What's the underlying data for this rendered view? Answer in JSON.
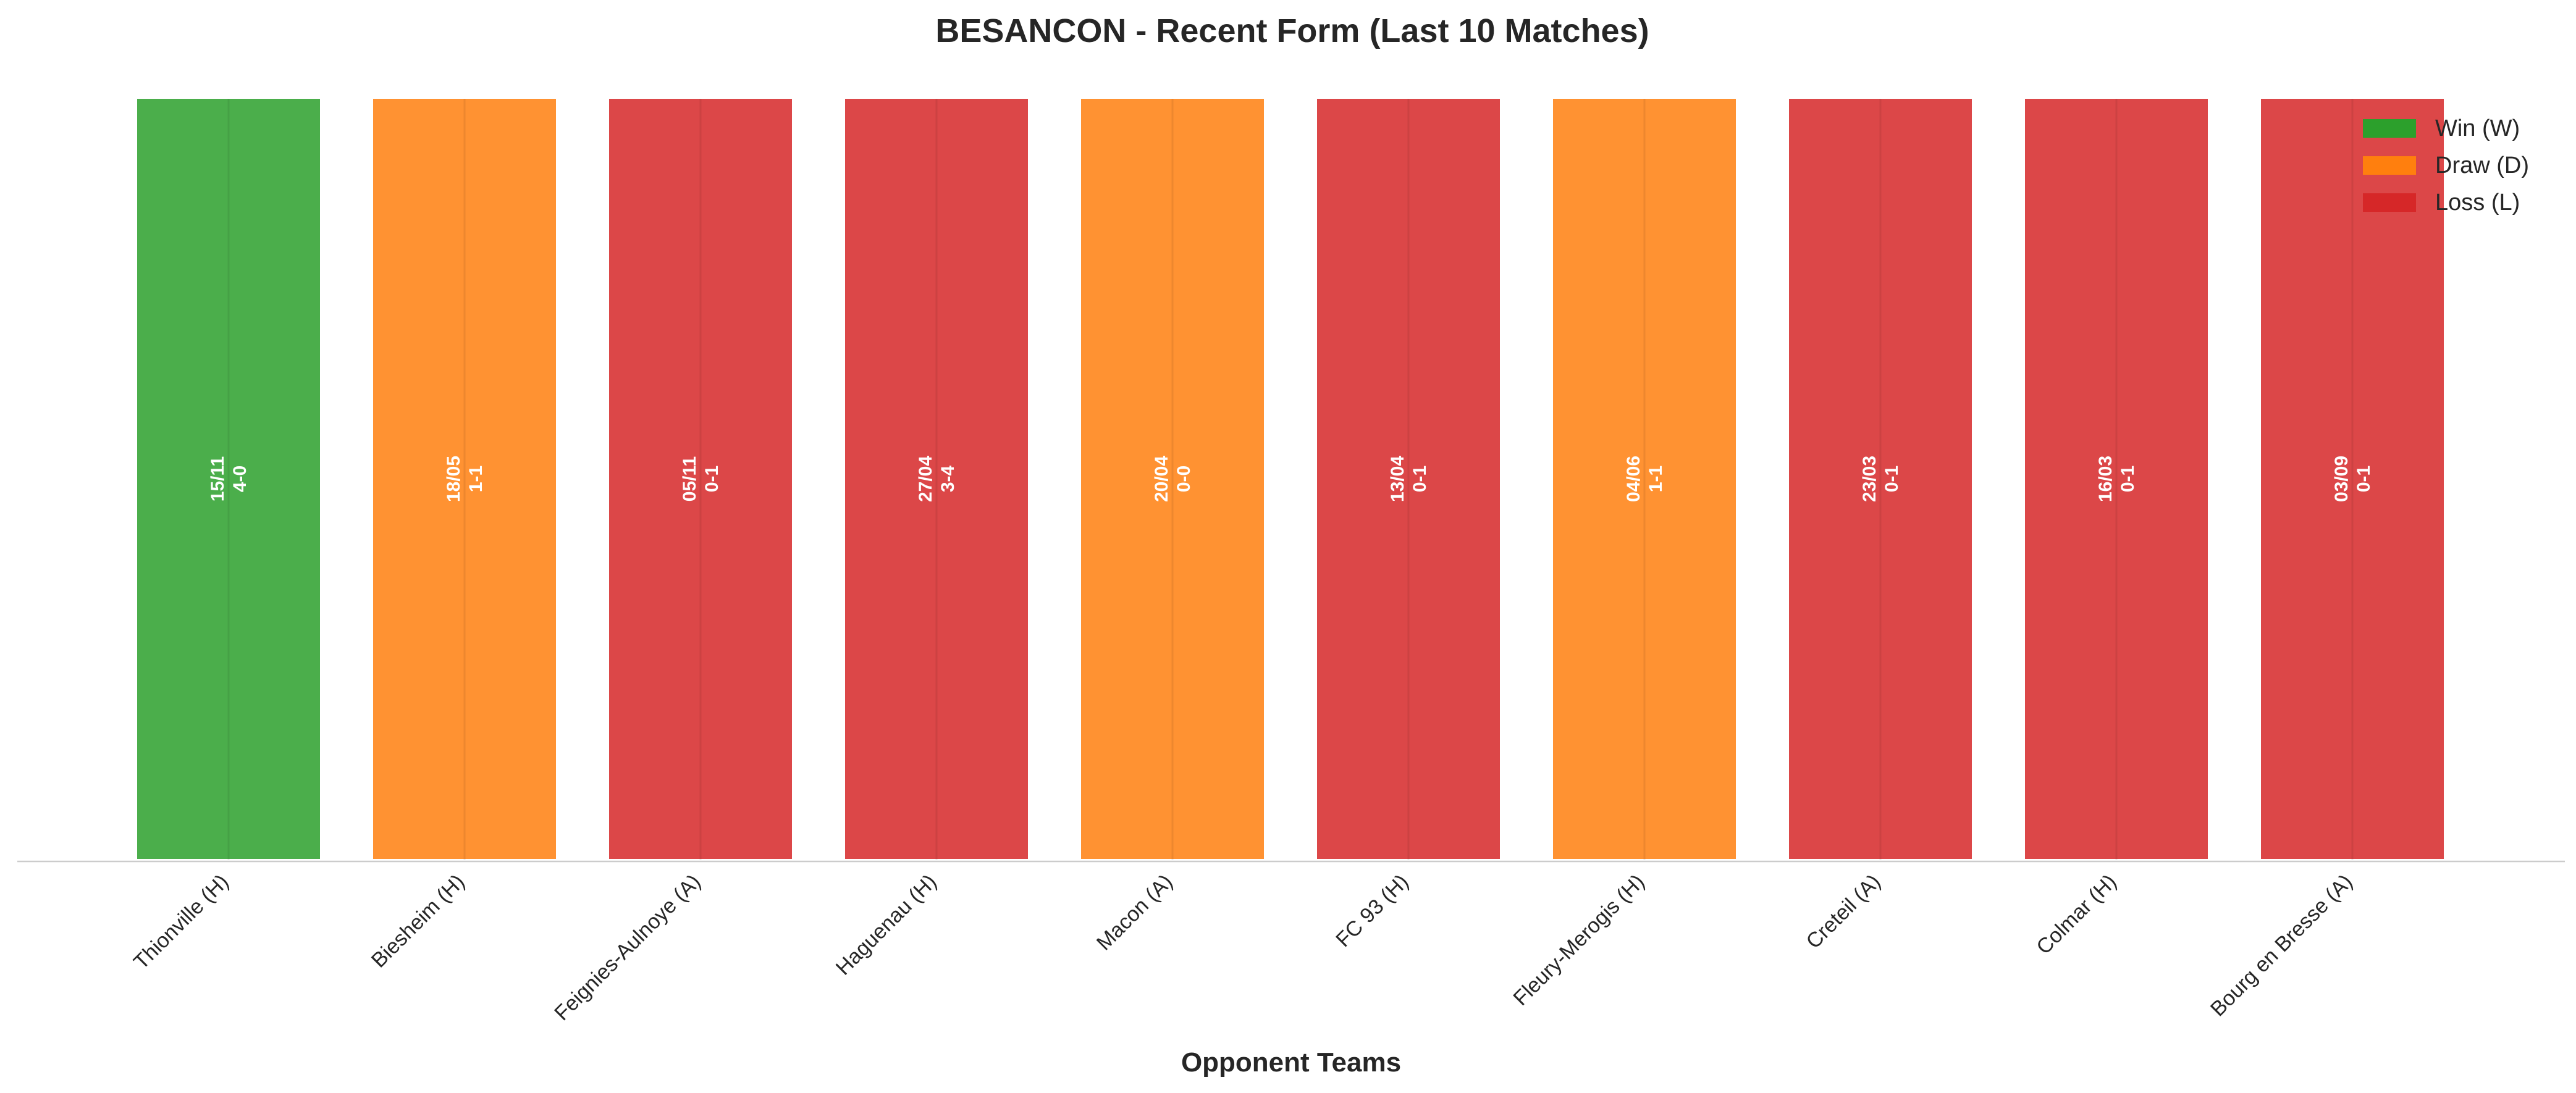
{
  "chart_data": {
    "type": "bar",
    "title": "BESANCON - Recent Form (Last 10 Matches)",
    "xlabel": "Opponent Teams",
    "ylabel": "",
    "categories": [
      "Thionville (H)",
      "Biesheim (H)",
      "Feignies-Aulnoye (A)",
      "Haguenau (H)",
      "Macon (A)",
      "FC 93 (H)",
      "Fleury-Merogis (H)",
      "Creteil (A)",
      "Colmar (H)",
      "Bourg en Bresse (A)"
    ],
    "values": [
      1,
      1,
      1,
      1,
      1,
      1,
      1,
      1,
      1,
      1
    ],
    "results": [
      "W",
      "D",
      "L",
      "L",
      "D",
      "L",
      "D",
      "L",
      "L",
      "L"
    ],
    "dates": [
      "15/11",
      "18/05",
      "05/11",
      "27/04",
      "20/04",
      "13/04",
      "04/06",
      "23/03",
      "16/03",
      "03/09"
    ],
    "scores": [
      "4-0",
      "1-1",
      "0-1",
      "3-4",
      "0-0",
      "0-1",
      "1-1",
      "0-1",
      "0-1",
      "0-1"
    ],
    "ylim": [
      0,
      1
    ],
    "grid": false,
    "legend": {
      "placement": "top-right",
      "entries": [
        {
          "key": "W",
          "label": "Win (W)",
          "color": "#2ca02c"
        },
        {
          "key": "D",
          "label": "Draw (D)",
          "color": "#ff7f0e"
        },
        {
          "key": "L",
          "label": "Loss (L)",
          "color": "#d62728"
        }
      ]
    }
  }
}
